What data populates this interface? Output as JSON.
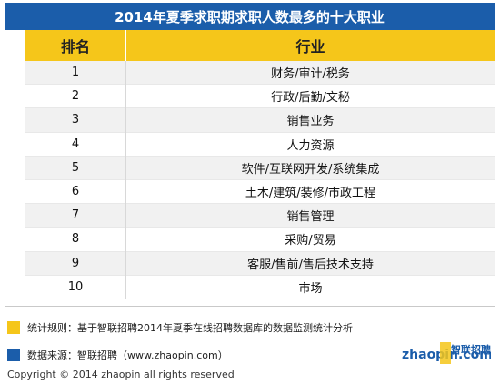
{
  "title": "2014年夏季求职期求职人数最多的十大职业",
  "table": {
    "headers": [
      "排名",
      "行业"
    ],
    "rows": [
      {
        "rank": "1",
        "industry": "财务/审计/税务"
      },
      {
        "rank": "2",
        "industry": "行政/后勤/文秘"
      },
      {
        "rank": "3",
        "industry": "销售业务"
      },
      {
        "rank": "4",
        "industry": "人力资源"
      },
      {
        "rank": "5",
        "industry": "软件/互联网开发/系统集成"
      },
      {
        "rank": "6",
        "industry": "土木/建筑/装修/市政工程"
      },
      {
        "rank": "7",
        "industry": "销售管理"
      },
      {
        "rank": "8",
        "industry": "采购/贸易"
      },
      {
        "rank": "9",
        "industry": "客服/售前/售后技术支持"
      },
      {
        "rank": "10",
        "industry": "市场"
      }
    ]
  },
  "notes": {
    "stat_rule": "统计规则：基于智联招聘2014年夏季在线招聘数据库的数据监测统计分析",
    "data_source": "数据来源：智联招聘（www.zhaopin.com）"
  },
  "logo": {
    "brand": "智联招聘",
    "domain": "zhaopin.com"
  },
  "copyright": "Copyright  ©  2014 zhaopin all rights reserved",
  "colors": {
    "title_bg": "#1b5daa",
    "header_bg": "#f5c61a",
    "legend_yellow": "#f5c61a",
    "legend_blue": "#1b5daa"
  }
}
